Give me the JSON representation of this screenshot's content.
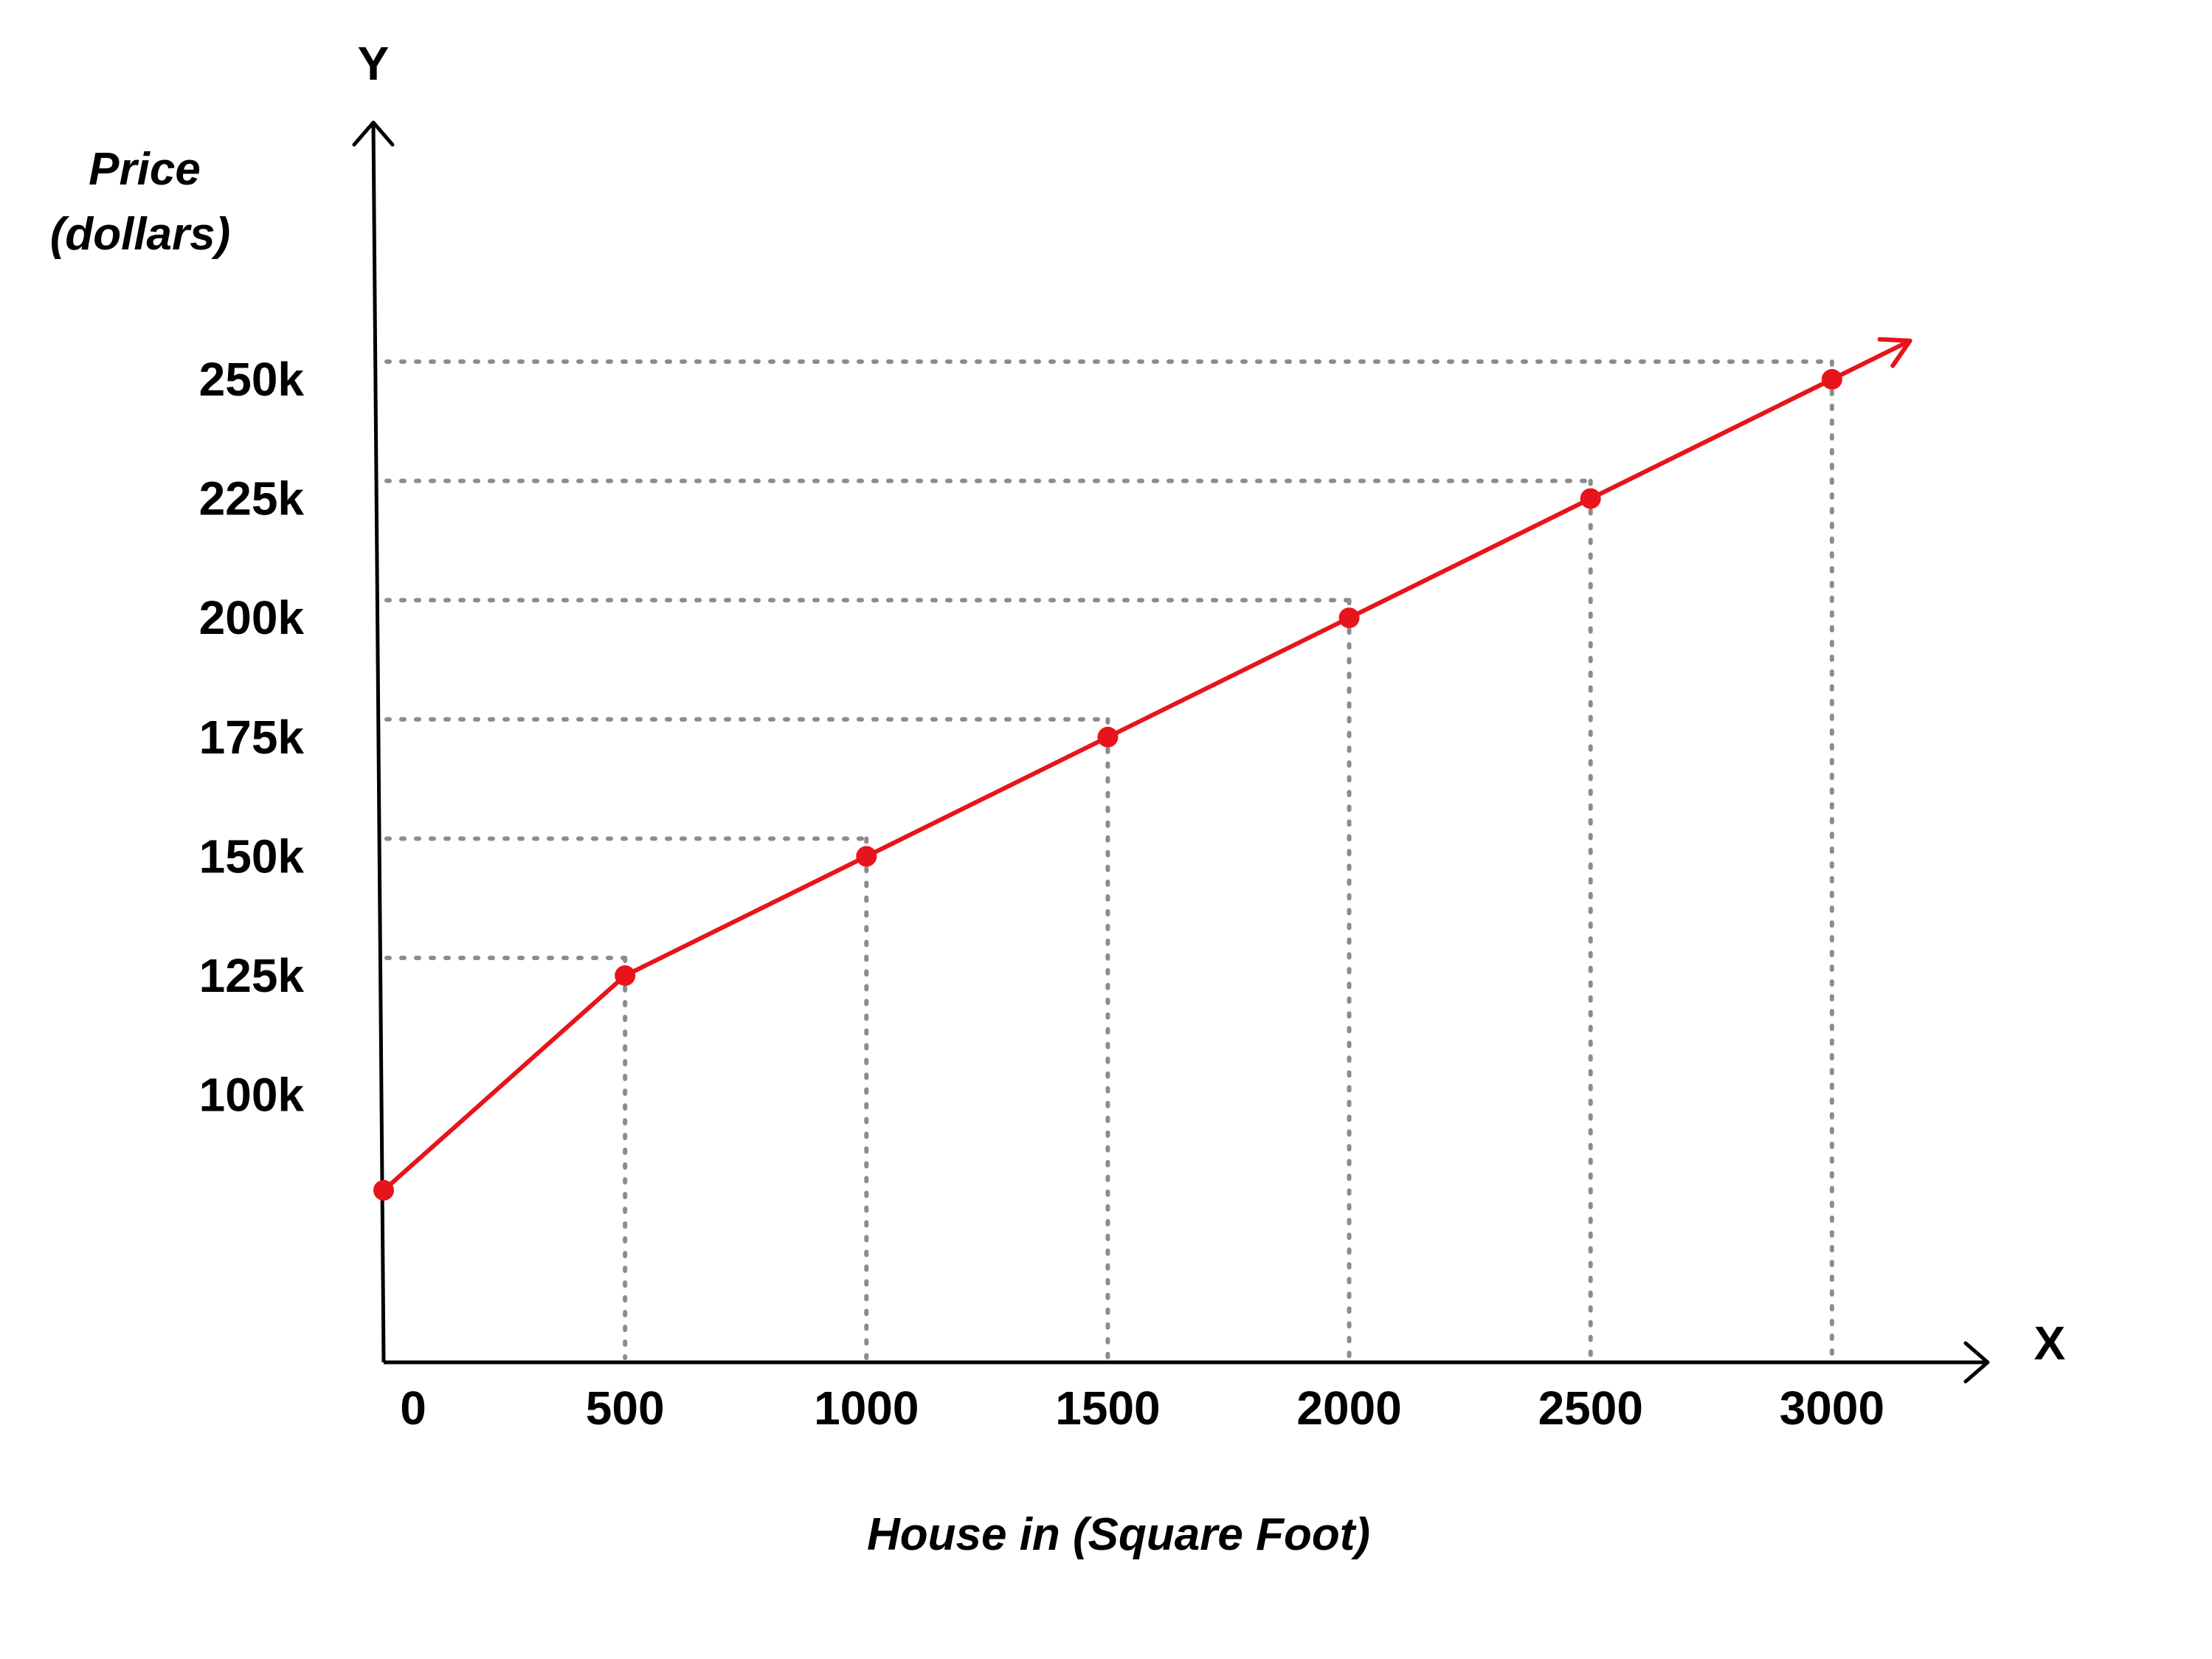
{
  "chart_data": {
    "type": "line",
    "title": "",
    "xlabel": "House in (Square Foot)",
    "ylabel_lines": [
      "Price",
      "(dollars)"
    ],
    "x_axis_letter": "X",
    "y_axis_letter": "Y",
    "x_ticks": [
      {
        "value": 0,
        "label": "0"
      },
      {
        "value": 500,
        "label": "500"
      },
      {
        "value": 1000,
        "label": "1000"
      },
      {
        "value": 1500,
        "label": "1500"
      },
      {
        "value": 2000,
        "label": "2000"
      },
      {
        "value": 2500,
        "label": "2500"
      },
      {
        "value": 3000,
        "label": "3000"
      }
    ],
    "y_ticks": [
      {
        "value": 100000,
        "label": "100k"
      },
      {
        "value": 125000,
        "label": "125k"
      },
      {
        "value": 150000,
        "label": "150k"
      },
      {
        "value": 175000,
        "label": "175k"
      },
      {
        "value": 200000,
        "label": "200k"
      },
      {
        "value": 225000,
        "label": "225k"
      },
      {
        "value": 250000,
        "label": "250k"
      }
    ],
    "xlim": [
      0,
      3200
    ],
    "ylim": [
      50000,
      300000
    ],
    "series": [
      {
        "points": [
          {
            "x": 0,
            "y": 80000
          },
          {
            "x": 500,
            "y": 125000
          },
          {
            "x": 1000,
            "y": 150000
          },
          {
            "x": 1500,
            "y": 175000
          },
          {
            "x": 2000,
            "y": 200000
          },
          {
            "x": 2500,
            "y": 225000
          },
          {
            "x": 3000,
            "y": 250000
          }
        ],
        "color": "#e8141b",
        "arrow_end": true
      }
    ],
    "guide_lines": "dotted",
    "guide_color": "#8c8c8c",
    "grid": false,
    "legend": "none"
  }
}
